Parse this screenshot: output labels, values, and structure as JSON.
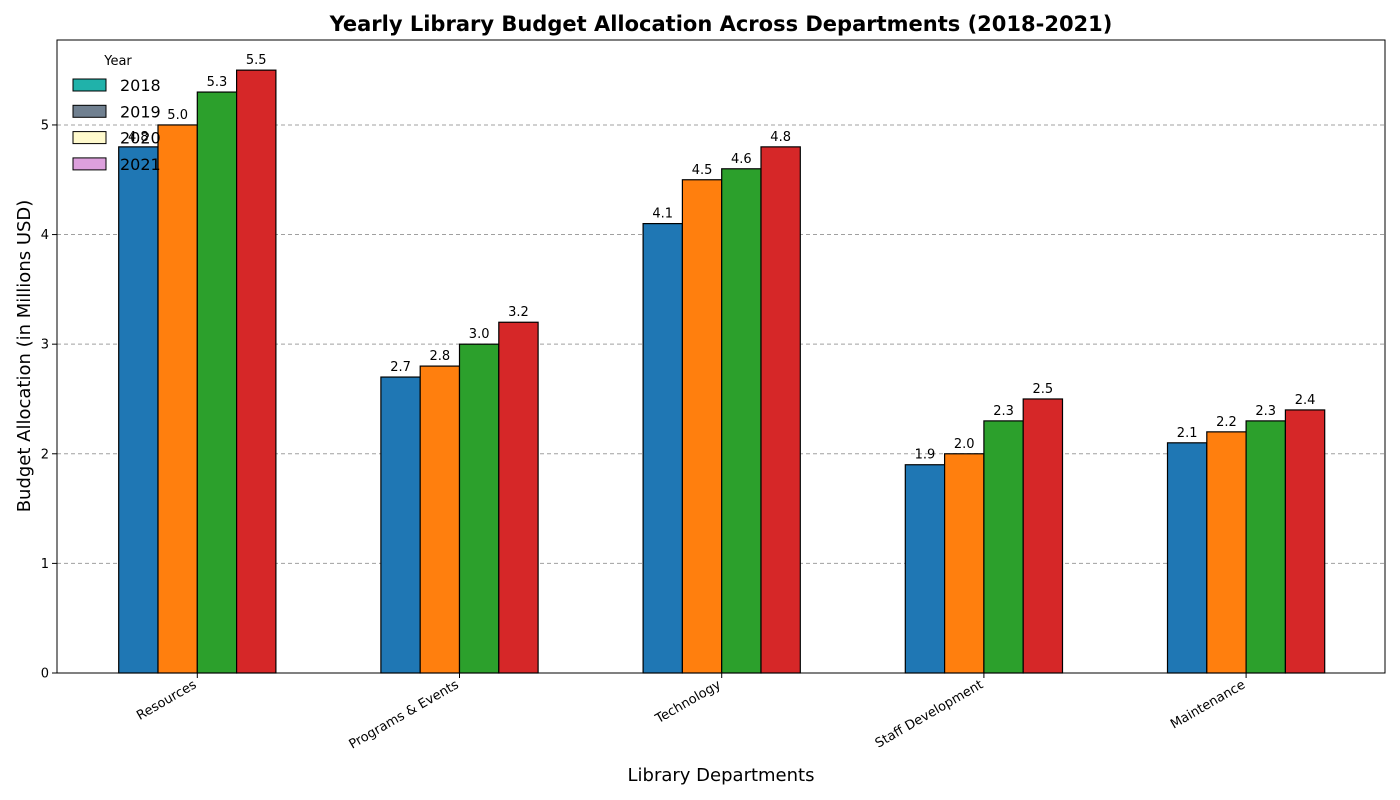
{
  "chart_data": {
    "type": "bar",
    "title": "Yearly Library Budget Allocation Across Departments (2018-2021)",
    "xlabel": "Library Departments",
    "ylabel": "Budget Allocation (in Millions USD)",
    "categories": [
      "Resources",
      "Programs & Events",
      "Technology",
      "Staff Development",
      "Maintenance"
    ],
    "series": [
      {
        "name": "2018",
        "values": [
          4.8,
          2.7,
          4.1,
          1.9,
          2.1
        ],
        "color": "#1f77b4"
      },
      {
        "name": "2019",
        "values": [
          5.0,
          2.8,
          4.5,
          2.0,
          2.2
        ],
        "color": "#ff7f0e"
      },
      {
        "name": "2020",
        "values": [
          5.3,
          3.0,
          4.6,
          2.3,
          2.3
        ],
        "color": "#2ca02c"
      },
      {
        "name": "2021",
        "values": [
          5.5,
          3.2,
          4.8,
          2.5,
          2.4
        ],
        "color": "#d62728"
      }
    ],
    "data_labels": [
      [
        "4.8",
        "2.7",
        "4.1",
        "1.9",
        "2.1"
      ],
      [
        "5.0",
        "2.8",
        "4.5",
        "2.0",
        "2.2"
      ],
      [
        "5.3",
        "3.0",
        "4.6",
        "2.3",
        "2.3"
      ],
      [
        "5.5",
        "3.2",
        "4.8",
        "2.5",
        "2.4"
      ]
    ],
    "ylim": [
      0,
      5.775
    ],
    "yticks": [
      0,
      1,
      2,
      3,
      4,
      5
    ],
    "ytick_labels": [
      "0",
      "1",
      "2",
      "3",
      "4",
      "5"
    ],
    "grid": "y-dashed",
    "legend": {
      "title": "Year",
      "placement": "upper-left",
      "entries": [
        {
          "label": "2018",
          "swatch": "#20b2aa"
        },
        {
          "label": "2019",
          "swatch": "#708090"
        },
        {
          "label": "2020",
          "swatch": "#fffacd"
        },
        {
          "label": "2021",
          "swatch": "#dda0dd"
        }
      ]
    }
  }
}
